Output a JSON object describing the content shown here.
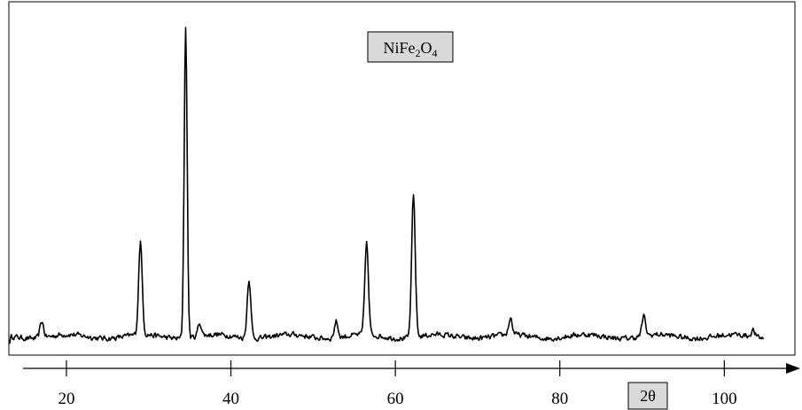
{
  "chart_data": {
    "type": "line",
    "title": "",
    "annotation": {
      "base": "NiFe",
      "sub1": "2",
      "mid": "O",
      "sub2": "4"
    },
    "xlabel": "2θ",
    "ylabel": "",
    "xlim": [
      13,
      106
    ],
    "ylim": [
      0,
      100
    ],
    "x_ticks": [
      20,
      40,
      60,
      80,
      100
    ],
    "x_tick_labels": [
      "20",
      "40",
      "60",
      "80",
      "100"
    ],
    "grid": false,
    "legend": "none",
    "baseline": 5,
    "peaks": [
      {
        "x": 17.0,
        "y": 10
      },
      {
        "x": 29.0,
        "y": 33
      },
      {
        "x": 34.5,
        "y": 100
      },
      {
        "x": 36.2,
        "y": 9
      },
      {
        "x": 42.2,
        "y": 23
      },
      {
        "x": 52.8,
        "y": 10
      },
      {
        "x": 56.5,
        "y": 33
      },
      {
        "x": 62.2,
        "y": 48
      },
      {
        "x": 74.0,
        "y": 10
      },
      {
        "x": 90.2,
        "y": 11
      },
      {
        "x": 103.5,
        "y": 7
      }
    ],
    "colors": {
      "line": "#000000",
      "box_fill": "#d9d9d9",
      "frame": "#000000"
    }
  }
}
